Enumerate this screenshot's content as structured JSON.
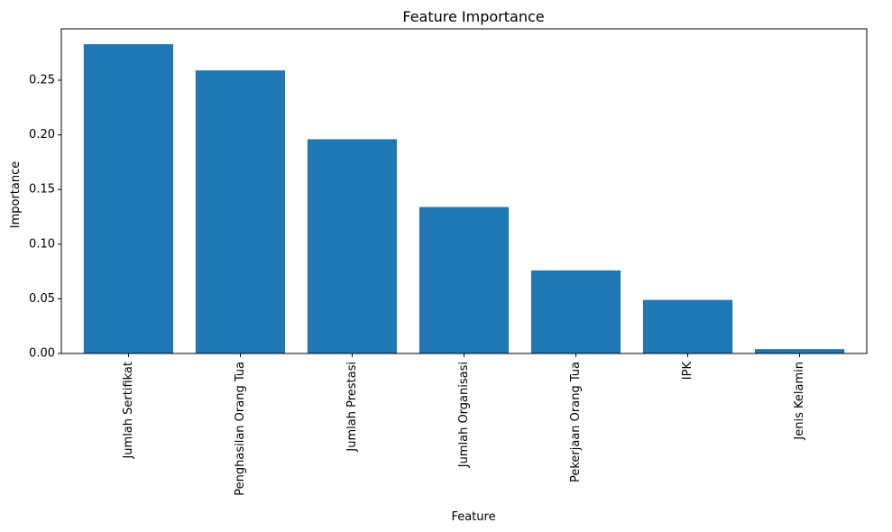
{
  "chart_data": {
    "type": "bar",
    "title": "Feature Importance",
    "xlabel": "Feature",
    "ylabel": "Importance",
    "categories": [
      "Jumlah Sertifikat",
      "Penghasilan Orang Tua",
      "Jumlah Prestasi",
      "Jumlah Organisasi",
      "Pekerjaan Orang Tua",
      "IPK",
      "Jenis Kelamin"
    ],
    "values": [
      0.283,
      0.259,
      0.196,
      0.134,
      0.076,
      0.049,
      0.004
    ],
    "ylim": [
      0,
      0.297
    ],
    "yticks": [
      0.0,
      0.05,
      0.1,
      0.15,
      0.2,
      0.25
    ],
    "ytick_labels": [
      "0.00",
      "0.05",
      "0.10",
      "0.15",
      "0.20",
      "0.25"
    ],
    "xtick_rotation": "vertical",
    "grid": false,
    "legend": "none",
    "bar_color": "#1f77b4"
  }
}
